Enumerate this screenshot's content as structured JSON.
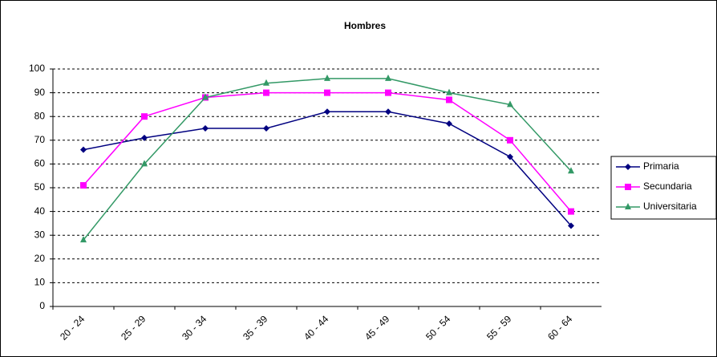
{
  "chart_data": {
    "type": "line",
    "title": "Hombres",
    "categories": [
      "20 - 24",
      "25 - 29",
      "30 - 34",
      "35 - 39",
      "40 - 44",
      "45 - 49",
      "50 - 54",
      "55 - 59",
      "60 - 64"
    ],
    "series": [
      {
        "name": "Primaria",
        "color": "#000080",
        "marker": "diamond",
        "values": [
          66,
          71,
          75,
          75,
          82,
          82,
          77,
          63,
          34
        ]
      },
      {
        "name": "Secundaria",
        "color": "#ff00ff",
        "marker": "square",
        "values": [
          51,
          80,
          88,
          90,
          90,
          90,
          87,
          70,
          40
        ]
      },
      {
        "name": "Universitaria",
        "color": "#339966",
        "marker": "triangle",
        "values": [
          28,
          60,
          88,
          94,
          96,
          96,
          90,
          85,
          57
        ]
      }
    ],
    "ylim": [
      0,
      100
    ],
    "yticks": [
      0,
      10,
      20,
      30,
      40,
      50,
      60,
      70,
      80,
      90,
      100
    ],
    "grid": true,
    "legend": "right"
  }
}
